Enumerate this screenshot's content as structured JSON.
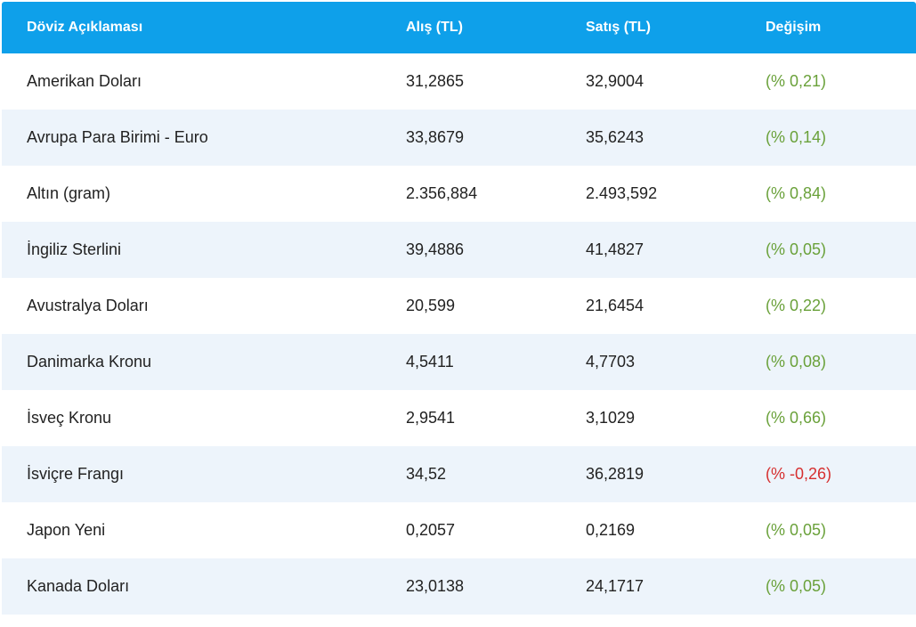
{
  "table": {
    "headers": {
      "name": "Döviz Açıklaması",
      "buy": "Alış (TL)",
      "sell": "Satış (TL)",
      "change": "Değişim"
    },
    "rows": [
      {
        "name": "Amerikan Doları",
        "buy": "31,2865",
        "sell": "32,9004",
        "change": "(% 0,21)"
      },
      {
        "name": "Avrupa Para Birimi - Euro",
        "buy": "33,8679",
        "sell": "35,6243",
        "change": "(% 0,14)"
      },
      {
        "name": "Altın (gram)",
        "buy": "2.356,884",
        "sell": "2.493,592",
        "change": "(% 0,84)"
      },
      {
        "name": "İngiliz Sterlini",
        "buy": "39,4886",
        "sell": "41,4827",
        "change": "(% 0,05)"
      },
      {
        "name": "Avustralya Doları",
        "buy": "20,599",
        "sell": "21,6454",
        "change": "(% 0,22)"
      },
      {
        "name": "Danimarka Kronu",
        "buy": "4,5411",
        "sell": "4,7703",
        "change": "(% 0,08)"
      },
      {
        "name": "İsveç Kronu",
        "buy": "2,9541",
        "sell": "3,1029",
        "change": "(% 0,66)"
      },
      {
        "name": "İsviçre Frangı",
        "buy": "34,52",
        "sell": "36,2819",
        "change": "(% -0,26)"
      },
      {
        "name": "Japon Yeni",
        "buy": "0,2057",
        "sell": "0,2169",
        "change": "(% 0,05)"
      },
      {
        "name": "Kanada Doları",
        "buy": "23,0138",
        "sell": "24,1717",
        "change": "(% 0,05)"
      }
    ]
  },
  "colors": {
    "header_bg": "#0ea0ea",
    "alt_row_bg": "#edf4fb",
    "positive": "#6aa13a",
    "negative": "#d62f2f"
  }
}
